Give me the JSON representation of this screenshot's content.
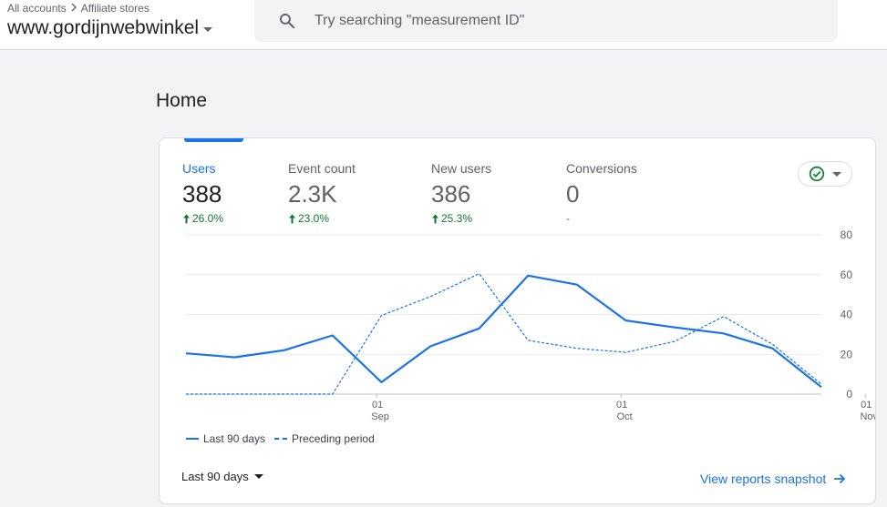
{
  "header": {
    "breadcrumb": {
      "root": "All accounts",
      "account": "Affiliate stores"
    },
    "property_name": "www.gordijnwebwinkel",
    "search": {
      "placeholder": "Try searching \"measurement ID\"",
      "value": ""
    }
  },
  "page": {
    "title": "Home"
  },
  "card": {
    "metrics": [
      {
        "label": "Users",
        "value": "388",
        "change": "26.0%",
        "active": true
      },
      {
        "label": "Event count",
        "value": "2.3K",
        "change": "23.0%",
        "active": false
      },
      {
        "label": "New users",
        "value": "386",
        "change": "25.3%",
        "active": false
      },
      {
        "label": "Conversions",
        "value": "0",
        "change": "-",
        "active": false
      }
    ],
    "insight_icon": "check-circle-icon",
    "legend": {
      "current": "Last 90 days",
      "previous": "Preceding period"
    },
    "date_range": "Last 90 days",
    "view_link": "View reports snapshot"
  },
  "colors": {
    "accent": "#1a73e8",
    "positive": "#137333",
    "check": "#188038"
  },
  "chart_data": {
    "type": "line",
    "title": "",
    "xlabel": "",
    "ylabel": "",
    "ylim": [
      0,
      80
    ],
    "y_ticks": [
      "80",
      "60",
      "40",
      "20",
      "0"
    ],
    "x_ticks": [
      {
        "day": "01",
        "month": "Sep",
        "index": 4
      },
      {
        "day": "01",
        "month": "Oct",
        "index": 9
      },
      {
        "day": "01",
        "month": "Nov",
        "index": 14
      }
    ],
    "grid": true,
    "legend_position": "bottom-left",
    "series": [
      {
        "name": "Last 90 days",
        "style": "solid",
        "values": [
          20.5,
          18.5,
          22,
          29.5,
          6,
          24,
          33,
          59.5,
          55,
          37,
          33.5,
          30.5,
          23,
          3.5
        ]
      },
      {
        "name": "Preceding period",
        "style": "dashed",
        "values": [
          0,
          0,
          0,
          0,
          39.5,
          49,
          60.5,
          27,
          23,
          21,
          26.5,
          39,
          25,
          5
        ]
      }
    ]
  }
}
